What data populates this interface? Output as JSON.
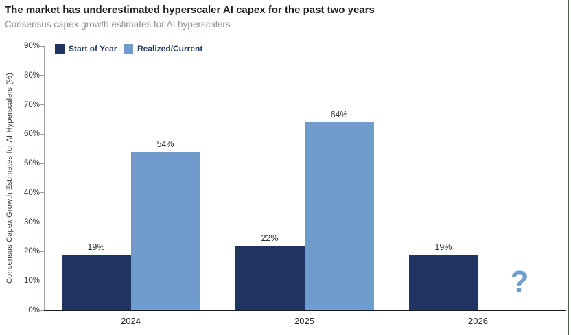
{
  "header": {
    "title": "The market has underestimated hyperscaler AI capex for the past two years",
    "subtitle": "Consensus capex growth estimates for AI hyperscalers"
  },
  "chart_data": {
    "type": "bar",
    "title": "The market has underestimated hyperscaler AI capex for the past two years",
    "subtitle": "Consensus capex growth estimates for AI hyperscalers",
    "categories": [
      "2024",
      "2025",
      "2026"
    ],
    "series": [
      {
        "name": "Start of Year",
        "color": "#1f3461",
        "values": [
          19,
          22,
          19
        ]
      },
      {
        "name": "Realized/Current",
        "color": "#6f9ccb",
        "values": [
          54,
          64,
          null
        ]
      }
    ],
    "value_labels": [
      "19%",
      "54%",
      "22%",
      "64%",
      "19%"
    ],
    "value_label_suffix": "%",
    "missing_value_marker": "?",
    "ylabel": "Consensus Capex Growth Estimates for AI Hyperscalers (%)",
    "ylim": [
      0,
      90
    ],
    "ytick_step": 10,
    "ytick_labels": [
      "0%",
      "10%",
      "20%",
      "30%",
      "40%",
      "50%",
      "60%",
      "70%",
      "80%",
      "90%"
    ],
    "legend": {
      "position": "top-left",
      "entries": [
        "Start of Year",
        "Realized/Current"
      ]
    },
    "grid": false,
    "colors": {
      "start_of_year": "#1f3461",
      "realized_current": "#6f9ccb",
      "axis_line": "#9aa0a6",
      "baseline": "#15181c",
      "title_text": "#1d2126",
      "subtitle_text": "#8e8e8e",
      "frame_right_border": "#466249"
    }
  }
}
